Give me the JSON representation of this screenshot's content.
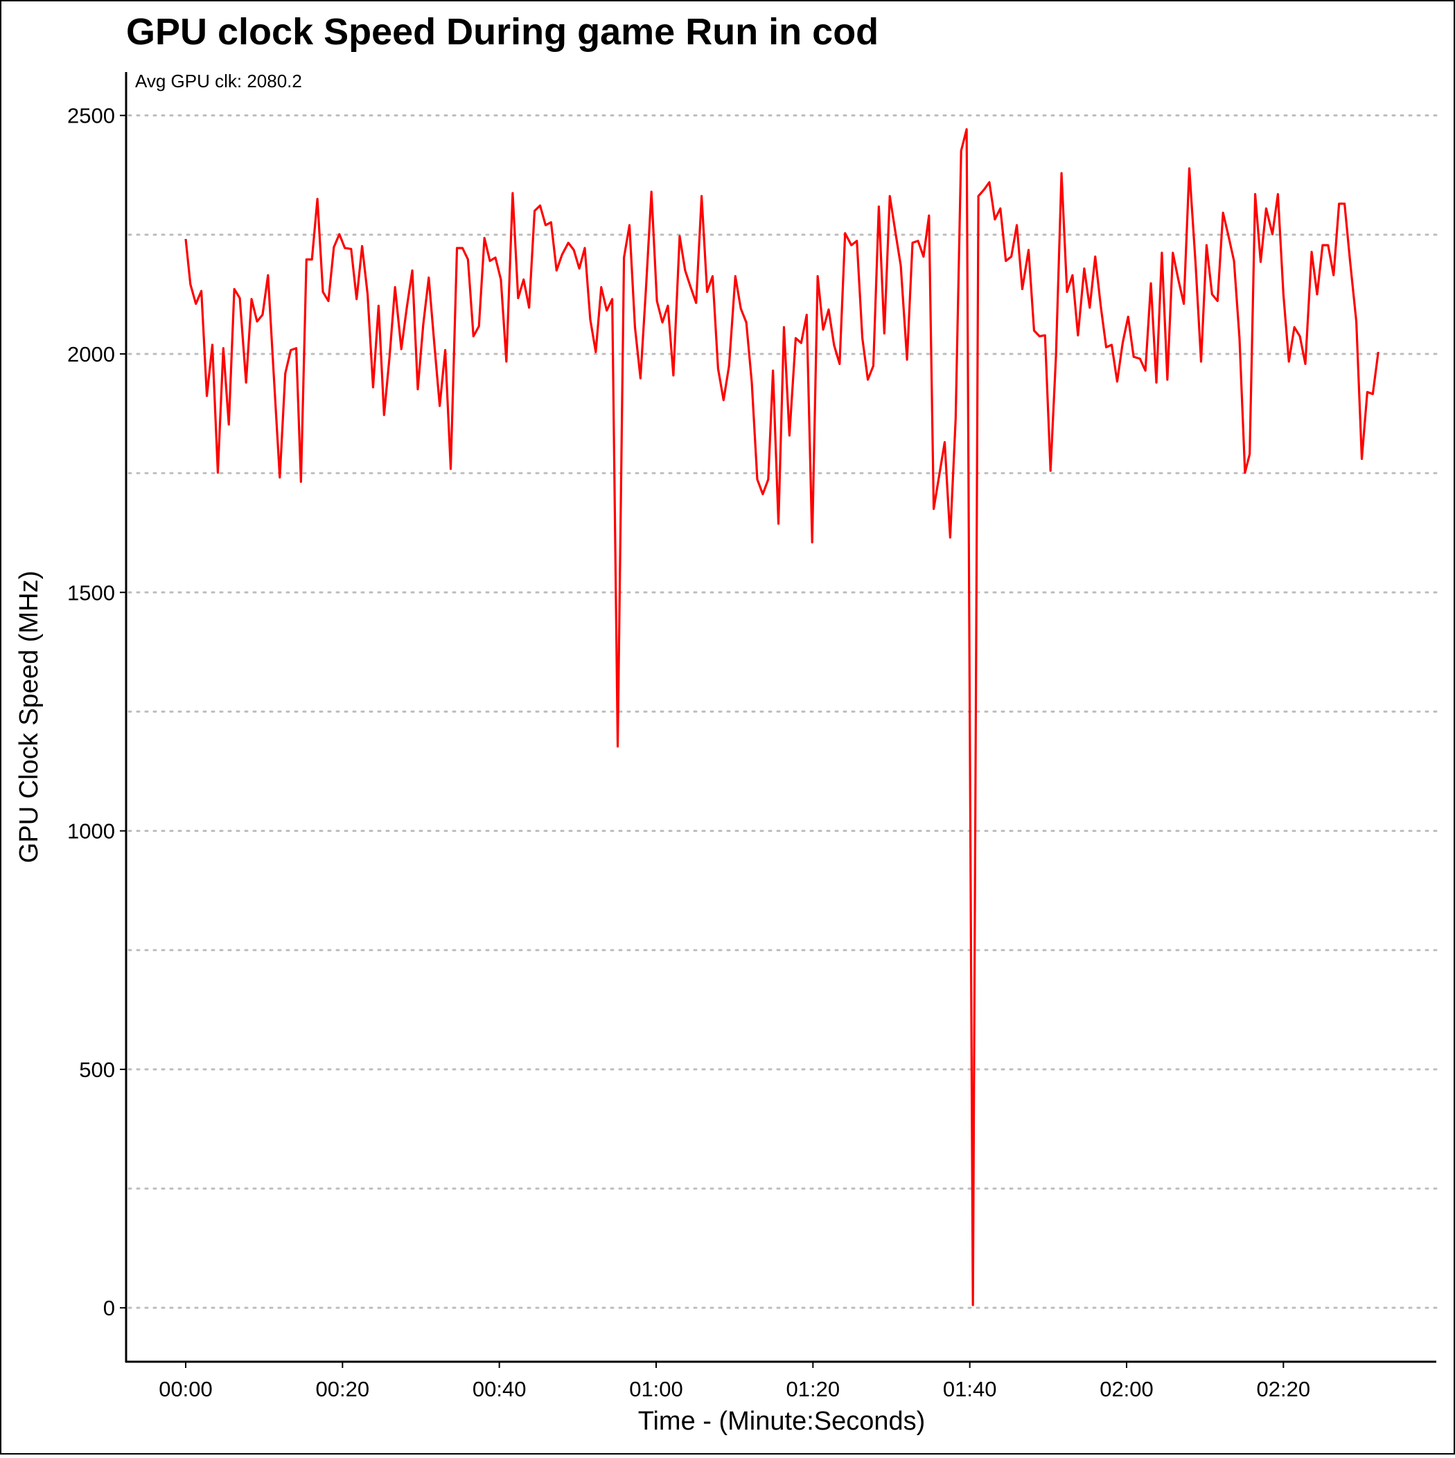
{
  "chart_data": {
    "type": "line",
    "title": "GPU clock Speed During game Run in cod",
    "annotation": "Avg GPU clk: 2080.2",
    "x_label": "Time - (Minute:Seconds)",
    "y_label": "GPU Clock Speed (MHz)",
    "xlim": [
      -7.6,
      159.5
    ],
    "xticks": [
      {
        "value": 0,
        "label": "00:00"
      },
      {
        "value": 20,
        "label": "00:20"
      },
      {
        "value": 40,
        "label": "00:40"
      },
      {
        "value": 60,
        "label": "01:00"
      },
      {
        "value": 80,
        "label": "01:20"
      },
      {
        "value": 100,
        "label": "01:40"
      },
      {
        "value": 120,
        "label": "02:00"
      },
      {
        "value": 140,
        "label": "02:20"
      }
    ],
    "ylim": [
      -113,
      2591
    ],
    "yticks": [
      0,
      500,
      1000,
      1500,
      2000,
      2500
    ],
    "y_minor_gridlines": [
      250,
      750,
      1250,
      1750,
      2250
    ],
    "grid": true,
    "series": [
      {
        "name": "GPU clk",
        "color": "#ff0000",
        "x": [
          0,
          0.6,
          1.3,
          2.0,
          2.7,
          3.4,
          4.1,
          4.8,
          5.5,
          6.2,
          6.9,
          7.7,
          8.4,
          9.1,
          9.8,
          10.5,
          11.2,
          12.0,
          12.7,
          13.4,
          14.1,
          14.7,
          15.4,
          16.1,
          16.8,
          17.5,
          18.2,
          18.9,
          19.6,
          20.3,
          21.1,
          21.8,
          22.5,
          23.2,
          23.9,
          24.6,
          25.3,
          26.0,
          26.7,
          27.5,
          28.2,
          28.9,
          29.6,
          30.3,
          31.0,
          31.7,
          32.4,
          33.1,
          33.8,
          34.6,
          35.3,
          36.0,
          36.7,
          37.4,
          38.1,
          38.8,
          39.5,
          40.2,
          40.9,
          41.7,
          42.4,
          43.1,
          43.8,
          44.5,
          45.2,
          45.9,
          46.6,
          47.3,
          48.0,
          48.8,
          49.5,
          50.2,
          50.9,
          51.6,
          52.3,
          53.0,
          53.7,
          54.4,
          55.1,
          55.9,
          56.6,
          57.3,
          58.0,
          58.7,
          59.4,
          60.1,
          60.8,
          61.5,
          62.2,
          63.0,
          63.7,
          64.4,
          65.1,
          65.8,
          66.5,
          67.2,
          67.9,
          68.6,
          69.3,
          70.1,
          70.8,
          71.5,
          72.2,
          72.9,
          73.6,
          74.3,
          74.9,
          75.6,
          76.3,
          77.0,
          77.8,
          78.5,
          79.2,
          79.9,
          80.6,
          81.3,
          82.0,
          82.7,
          83.4,
          84.1,
          84.9,
          85.6,
          86.3,
          87.0,
          87.7,
          88.4,
          89.1,
          89.8,
          90.5,
          91.2,
          92.0,
          92.7,
          93.4,
          94.1,
          94.8,
          95.4,
          96.1,
          96.8,
          97.5,
          98.2,
          98.9,
          99.6,
          100.4,
          101.1,
          101.8,
          102.5,
          103.2,
          103.9,
          104.6,
          105.3,
          106.0,
          106.7,
          107.5,
          108.2,
          108.9,
          109.6,
          110.3,
          111.0,
          111.7,
          112.4,
          113.1,
          113.8,
          114.6,
          115.3,
          116.0,
          116.7,
          117.4,
          118.1,
          118.8,
          119.5,
          120.2,
          120.9,
          121.7,
          122.4,
          123.1,
          123.8,
          124.5,
          125.2,
          125.9,
          126.6,
          127.3,
          128.0,
          128.8,
          129.5,
          130.2,
          130.9,
          131.6,
          132.3,
          133.0,
          133.7,
          134.4,
          135.1,
          135.7,
          136.4,
          137.1,
          137.8,
          138.6,
          139.3,
          140.0,
          140.7,
          141.4,
          142.1,
          142.8,
          143.6,
          144.3,
          145.0,
          145.7,
          146.4,
          147.1,
          147.8,
          148.5,
          149.3,
          150.0,
          150.7,
          151.4,
          152.1
        ],
        "values": [
          2241,
          2146,
          2105,
          2132,
          1912,
          2019,
          1751,
          2012,
          1852,
          2136,
          2117,
          1940,
          2115,
          2068,
          2082,
          2165,
          1965,
          1741,
          1959,
          2008,
          2012,
          1732,
          2198,
          2198,
          2325,
          2130,
          2111,
          2224,
          2251,
          2222,
          2220,
          2115,
          2226,
          2125,
          1930,
          2101,
          1872,
          1994,
          2140,
          2010,
          2097,
          2175,
          1926,
          2062,
          2160,
          2023,
          1891,
          2008,
          1759,
          2222,
          2222,
          2198,
          2037,
          2058,
          2243,
          2195,
          2202,
          2156,
          1984,
          2337,
          2117,
          2156,
          2097,
          2300,
          2311,
          2270,
          2276,
          2175,
          2208,
          2233,
          2218,
          2179,
          2222,
          2072,
          2004,
          2140,
          2091,
          2115,
          1177,
          2202,
          2270,
          2056,
          1949,
          2136,
          2340,
          2111,
          2066,
          2101,
          1955,
          2247,
          2175,
          2140,
          2107,
          2331,
          2130,
          2163,
          1969,
          1903,
          1975,
          2163,
          2095,
          2066,
          1940,
          1737,
          1706,
          1737,
          1965,
          1644,
          2056,
          1829,
          2033,
          2023,
          2082,
          1605,
          2163,
          2051,
          2093,
          2018,
          1979,
          2253,
          2228,
          2237,
          2033,
          1946,
          1975,
          2309,
          2043,
          2331,
          2257,
          2185,
          1988,
          2233,
          2237,
          2204,
          2290,
          1675,
          1745,
          1815,
          1615,
          1864,
          2426,
          2471,
          6,
          2331,
          2344,
          2360,
          2282,
          2305,
          2195,
          2204,
          2270,
          2136,
          2218,
          2049,
          2037,
          2039,
          1755,
          1998,
          2379,
          2130,
          2165,
          2039,
          2179,
          2097,
          2204,
          2101,
          2014,
          2019,
          1942,
          2023,
          2078,
          1994,
          1990,
          1965,
          2148,
          1940,
          2212,
          1946,
          2212,
          2156,
          2105,
          2389,
          2189,
          1984,
          2228,
          2125,
          2111,
          2296,
          2247,
          2195,
          2033,
          1751,
          1790,
          2335,
          2193,
          2305,
          2251,
          2335,
          2125,
          1984,
          2056,
          2037,
          1979,
          2214,
          2125,
          2228,
          2228,
          2165,
          2315,
          2315,
          2195,
          2068,
          1780,
          1920,
          1916,
          2004
        ]
      }
    ]
  }
}
